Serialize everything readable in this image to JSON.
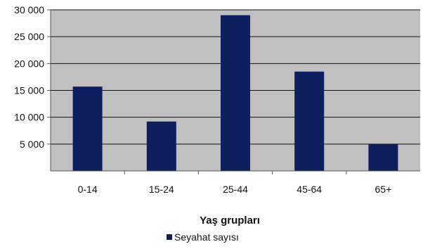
{
  "chart_data": {
    "type": "bar",
    "categories": [
      "0-14",
      "15-24",
      "25-44",
      "45-64",
      "65+"
    ],
    "series": [
      {
        "name": "Seyahat sayısı",
        "values": [
          15700,
          9200,
          29000,
          18500,
          5000
        ],
        "color": "#0d1f5f"
      }
    ],
    "title": "",
    "xlabel": "Yaş grupları",
    "ylabel": "",
    "ylim": [
      0,
      30000
    ],
    "yticks": [
      {
        "value": 5000,
        "label": "5 000"
      },
      {
        "value": 10000,
        "label": "10 000"
      },
      {
        "value": 15000,
        "label": "15 000"
      },
      {
        "value": 20000,
        "label": "20 000"
      },
      {
        "value": 25000,
        "label": "25 000"
      },
      {
        "value": 30000,
        "label": "30 000"
      }
    ],
    "grid": true,
    "plot_background": "#c0c0c0",
    "gridline_color": "#111111",
    "legend_position": "bottom-center"
  }
}
